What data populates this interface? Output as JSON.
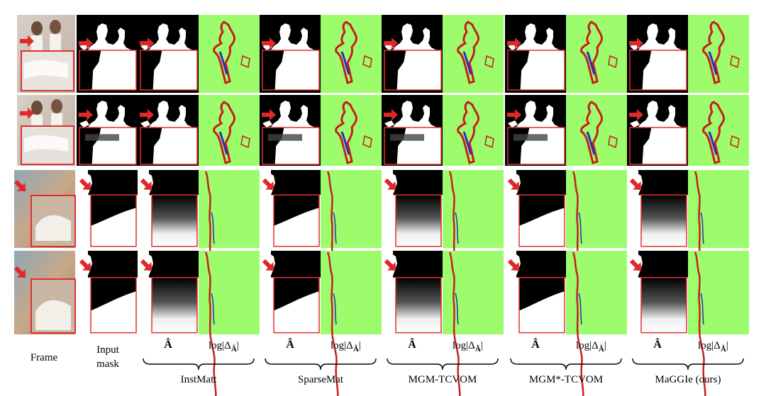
{
  "figure": {
    "column_labels": {
      "frame": "Frame",
      "input_mask_line1": "Input",
      "input_mask_line2": "mask"
    },
    "sub_labels": {
      "alpha": "Â",
      "error_prefix": "log|Δ",
      "error_sub": "Â",
      "error_suffix": "|"
    },
    "methods": [
      {
        "name": "InstMatt"
      },
      {
        "name": "SparseMat"
      },
      {
        "name": "MGM-TCVOM"
      },
      {
        "name": "MGM*-TCVOM"
      },
      {
        "name": "MaGGIe (ours)"
      }
    ],
    "colors": {
      "error_bg": "#9cfc6c",
      "error_red": "#c81e1e",
      "error_blue": "#2c2cc0",
      "highlight": "#e03030",
      "mask_bg": "#000000",
      "mask_fg": "#ffffff"
    },
    "icons": [
      "red-arrow-icon",
      "red-highlight-box",
      "curly-brace"
    ]
  }
}
